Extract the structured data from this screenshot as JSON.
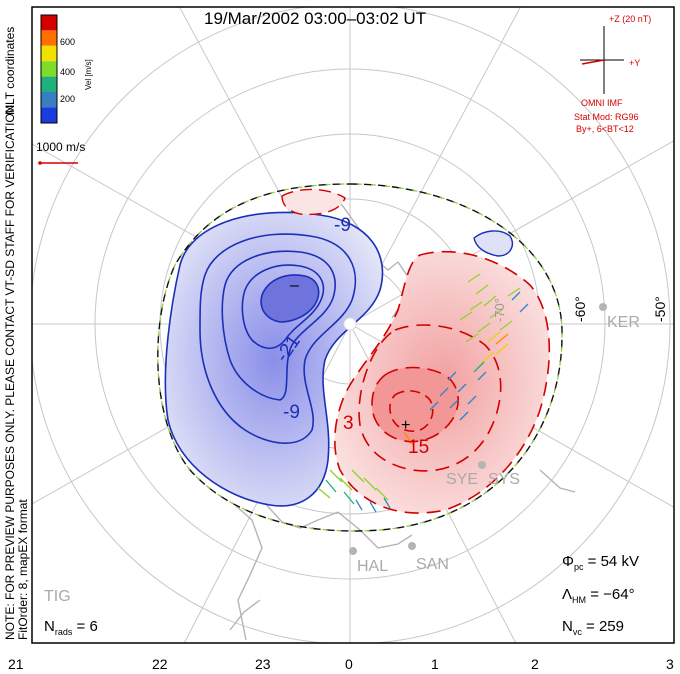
{
  "title": "19/Mar/2002 03:00–03:02 UT",
  "colorbar": {
    "ticks": [
      "600",
      "400",
      "200"
    ],
    "label": "Vel [m/s]",
    "colors": [
      "#d40000",
      "#ff7000",
      "#f2e000",
      "#7fdc2a",
      "#1fb07c",
      "#3a7ec2",
      "#1a3cdf"
    ]
  },
  "mlt_label": "MLT coordinates",
  "velocity_scale": "1000 m/s",
  "imf": {
    "z_label": "+Z (20 nT)",
    "y_label": "+Y",
    "source": "OMNI IMF",
    "model_line1": "Stat Mod: RG96",
    "model_line2": "By+, 6<BT<12"
  },
  "note_line1": "NOTE: FOR PREVIEW PURPOSES ONLY. PLEASE CONTACT VT-SD STAFF FOR VERIFICATION.",
  "note_line2": "FitOrder: 8, mapEX format",
  "contours": {
    "neg_labels": [
      "-9",
      "-21",
      "-9",
      "−"
    ],
    "pos_labels": [
      "3",
      "15",
      "+"
    ]
  },
  "lat_labels": [
    "-70°",
    "-60°",
    "-50°"
  ],
  "stations": [
    "KER",
    "SYE",
    "SYS",
    "HAL",
    "SAN",
    "TIG"
  ],
  "stats": {
    "phi_pc": "54 kV",
    "lambda_hm": "−64°",
    "n_vc": "259",
    "n_rads": "6"
  },
  "x_axis": [
    "21",
    "22",
    "23",
    "0",
    "1",
    "2",
    "3"
  ],
  "colors": {
    "negative_contour": "#1b2fb8",
    "positive_contour": "#d40000",
    "hmb": "#8ccf3a",
    "grid": "#c8c8c8",
    "coast": "#b4b4b4",
    "station": "#b4b4b4"
  }
}
